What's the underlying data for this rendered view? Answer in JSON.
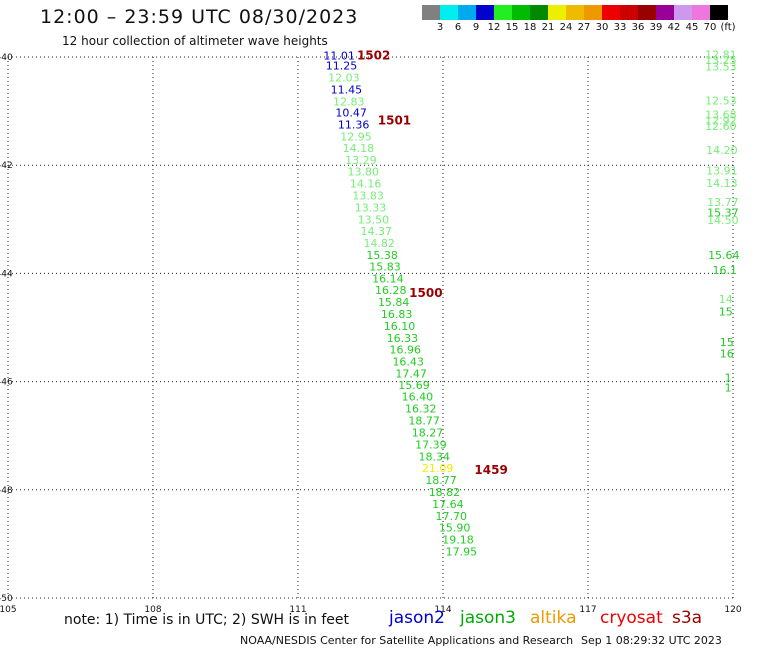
{
  "header": {
    "title": "12:00 – 23:59 UTC 08/30/2023",
    "subtitle": "12 hour collection of altimeter wave heights"
  },
  "legend": {
    "colors": [
      "#808080",
      "#00eeee",
      "#00aaee",
      "#0000cc",
      "#22ee22",
      "#00bb00",
      "#008800",
      "#eeee00",
      "#eebb00",
      "#ee9900",
      "#ee0000",
      "#cc0000",
      "#990000",
      "#990099",
      "#cc99ee",
      "#ee77dd",
      "#000000"
    ],
    "labels": [
      "3",
      "6",
      "9",
      "12",
      "15",
      "18",
      "21",
      "24",
      "27",
      "30",
      "33",
      "36",
      "39",
      "42",
      "45",
      "70",
      "(ft)"
    ]
  },
  "chart_data": {
    "type": "scatter",
    "xlim": [
      105,
      120
    ],
    "ylim": [
      -50,
      -40
    ],
    "x_ticks": [
      "105",
      "108",
      "111",
      "114",
      "117",
      "120"
    ],
    "y_ticks": [
      "-40",
      "-42",
      "-44",
      "-46",
      "-48",
      "-50"
    ],
    "grid": true,
    "track_main": [
      {
        "x": 111.85,
        "y": -39.97,
        "v": "11.01",
        "c": "#0000cc"
      },
      {
        "x": 111.9,
        "y": -40.16,
        "v": "11.25",
        "c": "#0000cc"
      },
      {
        "x": 111.95,
        "y": -40.38,
        "v": "12.03",
        "c": "#77ee77"
      },
      {
        "x": 112.0,
        "y": -40.6,
        "v": "11.45",
        "c": "#0000cc"
      },
      {
        "x": 112.05,
        "y": -40.82,
        "v": "12.83",
        "c": "#77ee77"
      },
      {
        "x": 112.1,
        "y": -41.03,
        "v": "10.47",
        "c": "#0000cc"
      },
      {
        "x": 112.15,
        "y": -41.25,
        "v": "11.36",
        "c": "#0000cc"
      },
      {
        "x": 112.2,
        "y": -41.47,
        "v": "12.95",
        "c": "#77ee77"
      },
      {
        "x": 112.25,
        "y": -41.68,
        "v": "14.18",
        "c": "#77ee77"
      },
      {
        "x": 112.3,
        "y": -41.9,
        "v": "13.29",
        "c": "#77ee77"
      },
      {
        "x": 112.35,
        "y": -42.12,
        "v": "13.80",
        "c": "#77ee77"
      },
      {
        "x": 112.4,
        "y": -42.34,
        "v": "14.16",
        "c": "#77ee77"
      },
      {
        "x": 112.45,
        "y": -42.56,
        "v": "13.83",
        "c": "#77ee77"
      },
      {
        "x": 112.5,
        "y": -42.78,
        "v": "13.33",
        "c": "#77ee77"
      },
      {
        "x": 112.56,
        "y": -43.0,
        "v": "13.50",
        "c": "#77ee77"
      },
      {
        "x": 112.62,
        "y": -43.22,
        "v": "14.37",
        "c": "#77ee77"
      },
      {
        "x": 112.68,
        "y": -43.44,
        "v": "14.82",
        "c": "#77ee77"
      },
      {
        "x": 112.74,
        "y": -43.66,
        "v": "15.38",
        "c": "#22cc22"
      },
      {
        "x": 112.8,
        "y": -43.87,
        "v": "15.83",
        "c": "#22cc22"
      },
      {
        "x": 112.86,
        "y": -44.09,
        "v": "16.14",
        "c": "#22cc22"
      },
      {
        "x": 112.92,
        "y": -44.31,
        "v": "16.28",
        "c": "#22cc22"
      },
      {
        "x": 112.98,
        "y": -44.53,
        "v": "15.84",
        "c": "#22cc22"
      },
      {
        "x": 113.04,
        "y": -44.75,
        "v": "16.83",
        "c": "#22cc22"
      },
      {
        "x": 113.1,
        "y": -44.97,
        "v": "16.10",
        "c": "#22cc22"
      },
      {
        "x": 113.16,
        "y": -45.19,
        "v": "16.33",
        "c": "#22cc22"
      },
      {
        "x": 113.22,
        "y": -45.41,
        "v": "16.96",
        "c": "#22cc22"
      },
      {
        "x": 113.28,
        "y": -45.63,
        "v": "16.43",
        "c": "#22cc22"
      },
      {
        "x": 113.34,
        "y": -45.85,
        "v": "17.47",
        "c": "#22cc22"
      },
      {
        "x": 113.4,
        "y": -46.06,
        "v": "15.69",
        "c": "#22cc22"
      },
      {
        "x": 113.47,
        "y": -46.28,
        "v": "16.40",
        "c": "#22cc22"
      },
      {
        "x": 113.54,
        "y": -46.5,
        "v": "16.32",
        "c": "#22cc22"
      },
      {
        "x": 113.61,
        "y": -46.72,
        "v": "18.77",
        "c": "#22cc22"
      },
      {
        "x": 113.68,
        "y": -46.94,
        "v": "18.27",
        "c": "#22cc22"
      },
      {
        "x": 113.75,
        "y": -47.16,
        "v": "17.39",
        "c": "#22cc22"
      },
      {
        "x": 113.82,
        "y": -47.38,
        "v": "18.34",
        "c": "#22cc22"
      },
      {
        "x": 113.89,
        "y": -47.6,
        "v": "21.09",
        "c": "#eeee00"
      },
      {
        "x": 113.96,
        "y": -47.82,
        "v": "18.77",
        "c": "#22cc22"
      },
      {
        "x": 114.03,
        "y": -48.04,
        "v": "18.82",
        "c": "#22cc22"
      },
      {
        "x": 114.1,
        "y": -48.26,
        "v": "17.64",
        "c": "#22cc22"
      },
      {
        "x": 114.17,
        "y": -48.48,
        "v": "17.70",
        "c": "#22cc22"
      },
      {
        "x": 114.24,
        "y": -48.7,
        "v": "15.90",
        "c": "#22cc22"
      },
      {
        "x": 114.31,
        "y": -48.92,
        "v": "19.18",
        "c": "#22cc22"
      },
      {
        "x": 114.38,
        "y": -49.14,
        "v": "17.95",
        "c": "#22cc22"
      }
    ],
    "track_right": [
      {
        "x": 119.75,
        "y": -39.95,
        "v": "12.81",
        "c": "#77ee77"
      },
      {
        "x": 119.75,
        "y": -40.06,
        "v": "13.25",
        "c": "#77ee77"
      },
      {
        "x": 119.75,
        "y": -40.18,
        "v": "13.53",
        "c": "#77ee77"
      },
      {
        "x": 119.75,
        "y": -40.8,
        "v": "12.53",
        "c": "#77ee77"
      },
      {
        "x": 119.75,
        "y": -41.06,
        "v": "13.68",
        "c": "#77ee77"
      },
      {
        "x": 119.75,
        "y": -41.17,
        "v": "12.92",
        "c": "#77ee77"
      },
      {
        "x": 119.75,
        "y": -41.28,
        "v": "12.60",
        "c": "#77ee77"
      },
      {
        "x": 119.77,
        "y": -41.72,
        "v": "14.20",
        "c": "#77ee77"
      },
      {
        "x": 119.77,
        "y": -42.1,
        "v": "13.91",
        "c": "#77ee77"
      },
      {
        "x": 119.77,
        "y": -42.33,
        "v": "14.13",
        "c": "#77ee77"
      },
      {
        "x": 119.79,
        "y": -42.68,
        "v": "13.77",
        "c": "#77ee77"
      },
      {
        "x": 119.79,
        "y": -42.87,
        "v": "15.37",
        "c": "#22cc22"
      },
      {
        "x": 119.79,
        "y": -43.01,
        "v": "14.50",
        "c": "#77ee77"
      },
      {
        "x": 119.81,
        "y": -43.66,
        "v": "15.64",
        "c": "#22cc22"
      },
      {
        "x": 119.83,
        "y": -43.94,
        "v": "16.1",
        "c": "#22cc22"
      },
      {
        "x": 119.85,
        "y": -44.47,
        "v": "14",
        "c": "#77ee77"
      },
      {
        "x": 119.85,
        "y": -44.7,
        "v": "15",
        "c": "#22cc22"
      },
      {
        "x": 119.87,
        "y": -45.27,
        "v": "15",
        "c": "#22cc22"
      },
      {
        "x": 119.87,
        "y": -45.48,
        "v": "16",
        "c": "#22cc22"
      },
      {
        "x": 119.9,
        "y": -45.92,
        "v": "1",
        "c": "#22cc22"
      },
      {
        "x": 119.9,
        "y": -46.11,
        "v": "1",
        "c": "#22cc22"
      }
    ],
    "time_labels": [
      {
        "x": 112.22,
        "y": -39.97,
        "v": "1502"
      },
      {
        "x": 112.65,
        "y": -41.17,
        "v": "1501"
      },
      {
        "x": 113.3,
        "y": -44.36,
        "v": "1500"
      },
      {
        "x": 114.65,
        "y": -47.63,
        "v": "1459"
      }
    ],
    "time_label_color": "#990000"
  },
  "footer": {
    "note": "note:  1) Time is in UTC;  2) SWH is in feet",
    "satellites": [
      {
        "name": "jason2",
        "color": "#0000cc"
      },
      {
        "name": "jason3",
        "color": "#00aa00"
      },
      {
        "name": "altika",
        "color": "#ee9900"
      },
      {
        "name": "cryosat",
        "color": "#ee0000"
      },
      {
        "name": "s3a",
        "color": "#990000"
      }
    ],
    "credit": "NOAA/NESDIS Center for Satellite Applications and Research",
    "timestamp": "Sep  1 08:29:32 UTC 2023"
  }
}
